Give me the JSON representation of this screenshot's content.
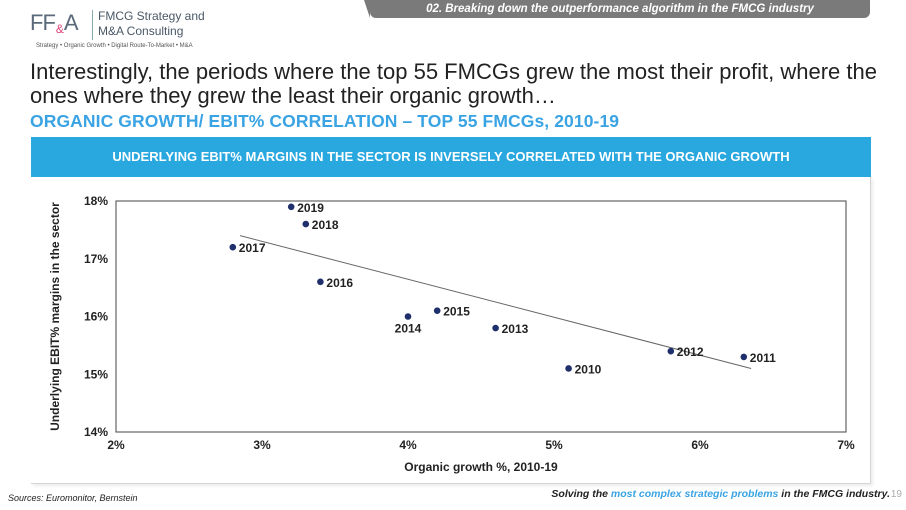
{
  "logo": {
    "mark_left": "FF",
    "mark_amp": "&",
    "mark_right": "A",
    "name_line1": "FMCG Strategy and",
    "name_line2": "M&A Consulting",
    "tagline": "Strategy • Organic Growth • Digital Route-To-Market • M&A"
  },
  "section_tab": "02. Breaking down the outperformance algorithm in the FMCG industry",
  "headline": "Interestingly, the periods where the top 55 FMCGs grew the most their profit, where the ones where they grew the least their organic growth…",
  "subhead": "ORGANIC GROWTH/ EBIT% CORRELATION – TOP 55 FMCGs, 2010-19",
  "banner": "UNDERLYING EBIT% MARGINS IN THE SECTOR IS INVERSELY CORRELATED WITH THE ORGANIC GROWTH",
  "chart_data": {
    "type": "scatter",
    "xlabel": "Organic growth %, 2010-19",
    "ylabel": "Underlying EBIT% margins in the sector",
    "xlim": [
      2,
      7
    ],
    "ylim": [
      14,
      18
    ],
    "x_ticks": [
      "2%",
      "3%",
      "4%",
      "5%",
      "6%",
      "7%"
    ],
    "y_ticks": [
      "14%",
      "15%",
      "16%",
      "17%",
      "18%"
    ],
    "grid": false,
    "point_color": "#1f2f6b",
    "trendline": {
      "x": [
        2.85,
        6.35
      ],
      "y": [
        17.4,
        15.1
      ]
    },
    "points": [
      {
        "label": "2010",
        "x": 5.1,
        "y": 15.1
      },
      {
        "label": "2011",
        "x": 6.3,
        "y": 15.3
      },
      {
        "label": "2012",
        "x": 5.8,
        "y": 15.4
      },
      {
        "label": "2013",
        "x": 4.6,
        "y": 15.8
      },
      {
        "label": "2014",
        "x": 4.0,
        "y": 16.0
      },
      {
        "label": "2015",
        "x": 4.2,
        "y": 16.1
      },
      {
        "label": "2016",
        "x": 3.4,
        "y": 16.6
      },
      {
        "label": "2017",
        "x": 2.8,
        "y": 17.2
      },
      {
        "label": "2018",
        "x": 3.3,
        "y": 17.6
      },
      {
        "label": "2019",
        "x": 3.2,
        "y": 17.9
      }
    ]
  },
  "sources": "Sources: Euromonitor, Bernstein",
  "footer": {
    "before": "Solving the ",
    "highlight": "most complex strategic problems",
    "after": " in the FMCG industry.",
    "page": "19"
  }
}
